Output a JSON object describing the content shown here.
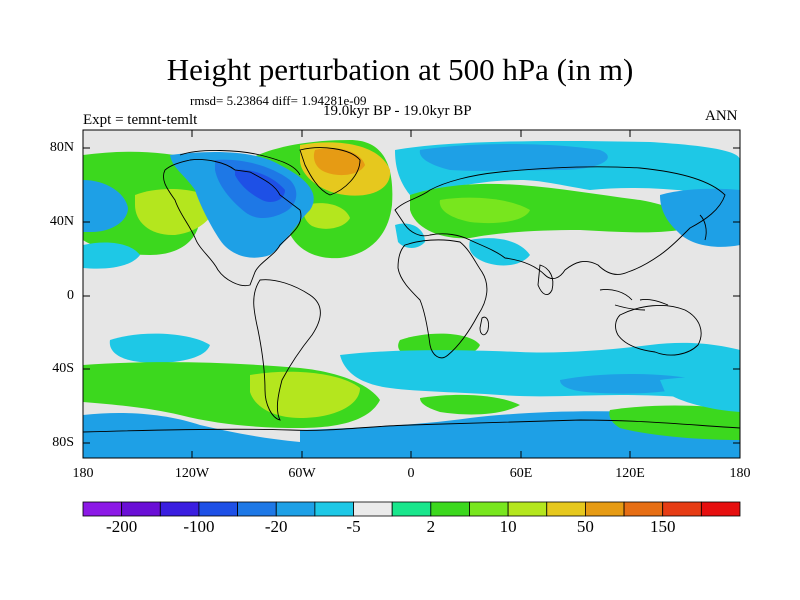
{
  "title": "Height perturbation at 500 hPa (in m)",
  "stats": "rmsd= 5.23864 diff= 1.94281e-09",
  "period": "19.0kyr BP - 19.0kyr BP",
  "experiment": "Expt = temnt-temlt",
  "season": "ANN",
  "map": {
    "lat_labels": [
      "80N",
      "40N",
      "0",
      "40S",
      "80S"
    ],
    "lon_labels": [
      "180",
      "120W",
      "60W",
      "0",
      "60E",
      "120E",
      "180"
    ],
    "background_color": "#e6e6e6"
  },
  "colorbar": {
    "colors": [
      "#8c19e6",
      "#6a0fd6",
      "#3a1ee0",
      "#1e50e6",
      "#1e78e6",
      "#1ea0e6",
      "#1ec8e6",
      "#ebebeb",
      "#19e68c",
      "#3cd81e",
      "#78e61e",
      "#b4e61e",
      "#e6c81e",
      "#e69b14",
      "#e66e14",
      "#e63c14",
      "#e60f0f"
    ],
    "labels": [
      "-200",
      "-100",
      "-20",
      "-5",
      "2",
      "10",
      "50",
      "150"
    ]
  }
}
